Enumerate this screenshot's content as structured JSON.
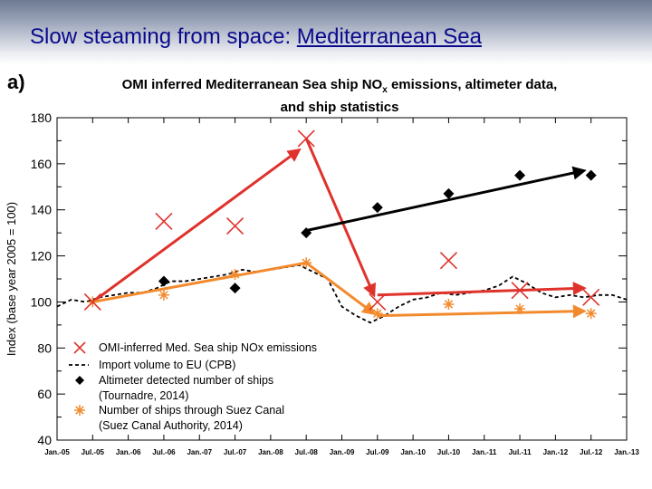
{
  "slide": {
    "title_prefix": "Slow steaming from space: ",
    "title_link": "Mediterranean Sea",
    "panel_label": "a)"
  },
  "chart_data": {
    "type": "line",
    "title_line1": "OMI inferred Mediterranean Sea ship NO",
    "title_sub": "x",
    "title_line1_end": " emissions, altimeter data,",
    "title_line2": "and ship statistics",
    "ylabel": "Index (base year 2005 = 100)",
    "ylim": [
      40,
      180
    ],
    "yticks": [
      40,
      60,
      80,
      100,
      120,
      140,
      160,
      180
    ],
    "xlim": [
      2005.0,
      2013.0
    ],
    "xticks": [
      "Jan.-05",
      "Jul.-05",
      "Jan.-06",
      "Jul.-06",
      "Jan.-07",
      "Jul.-07",
      "Jan.-08",
      "Jul.-08",
      "Jan.-09",
      "Jul.-09",
      "Jan.-10",
      "Jul.-10",
      "Jan.-11",
      "Jul.-11",
      "Jan.-12",
      "Jul.-12",
      "Jan.-13"
    ],
    "series": [
      {
        "name": "OMI-inferred Med. Sea ship NOx emissions",
        "marker": "x",
        "color": "#e0322c",
        "x": [
          2005.5,
          2006.5,
          2007.5,
          2008.5,
          2009.5,
          2010.5,
          2011.5,
          2012.5
        ],
        "y": [
          100,
          135,
          133,
          171,
          100,
          118,
          105,
          102
        ]
      },
      {
        "name": "Import volume to EU (CPB)",
        "marker": "dashed",
        "color": "#000000",
        "x": [
          2005.0,
          2005.2,
          2005.4,
          2005.6,
          2005.8,
          2006.0,
          2006.2,
          2006.4,
          2006.6,
          2006.8,
          2007.0,
          2007.2,
          2007.4,
          2007.6,
          2007.8,
          2008.0,
          2008.2,
          2008.4,
          2008.6,
          2008.8,
          2009.0,
          2009.2,
          2009.4,
          2009.6,
          2009.8,
          2010.0,
          2010.2,
          2010.4,
          2010.6,
          2010.8,
          2011.0,
          2011.2,
          2011.4,
          2011.6,
          2011.8,
          2012.0,
          2012.2,
          2012.4,
          2012.6,
          2012.8,
          2013.0
        ],
        "y": [
          98,
          101,
          100,
          102,
          103,
          104,
          104,
          106,
          109,
          109,
          110,
          111,
          112,
          114,
          113,
          114,
          115,
          116,
          113,
          110,
          98,
          94,
          91,
          94,
          98,
          101,
          102,
          104,
          103,
          104,
          105,
          107,
          111,
          108,
          104,
          102,
          103,
          102,
          103,
          103,
          101
        ]
      },
      {
        "name": "Altimeter detected number of ships",
        "source": "(Tournadre, 2014)",
        "marker": "diamond",
        "color": "#000000",
        "x": [
          2006.5,
          2007.5,
          2008.5,
          2009.5,
          2010.5,
          2011.5,
          2012.5
        ],
        "y": [
          109,
          106,
          130,
          141,
          147,
          155,
          155
        ]
      },
      {
        "name": "Number of ships through Suez Canal",
        "source": "(Suez Canal Authority, 2014)",
        "marker": "asterisk",
        "color": "#f28a2d",
        "x": [
          2005.5,
          2006.5,
          2007.5,
          2008.5,
          2009.5,
          2010.5,
          2011.5,
          2012.5
        ],
        "y": [
          100,
          103,
          112,
          117,
          95,
          99,
          97,
          95
        ]
      }
    ],
    "trend_arrows": [
      {
        "color": "#e0322c",
        "from": [
          2005.5,
          100
        ],
        "to": [
          2008.4,
          166
        ]
      },
      {
        "color": "#e0322c",
        "from": [
          2008.5,
          171
        ],
        "to": [
          2009.45,
          103
        ]
      },
      {
        "color": "#e0322c",
        "from": [
          2009.5,
          103
        ],
        "to": [
          2012.4,
          106
        ]
      },
      {
        "color": "#000000",
        "from": [
          2008.5,
          131
        ],
        "to": [
          2012.4,
          157
        ]
      },
      {
        "color": "#f28a2d",
        "line": [
          [
            2005.5,
            100
          ],
          [
            2008.5,
            117
          ]
        ]
      },
      {
        "color": "#f28a2d",
        "from": [
          2008.5,
          117
        ],
        "to": [
          2009.45,
          95
        ]
      },
      {
        "color": "#f28a2d",
        "from": [
          2009.5,
          94
        ],
        "to": [
          2012.4,
          96
        ]
      }
    ],
    "legend_placement": "bottom-left"
  }
}
